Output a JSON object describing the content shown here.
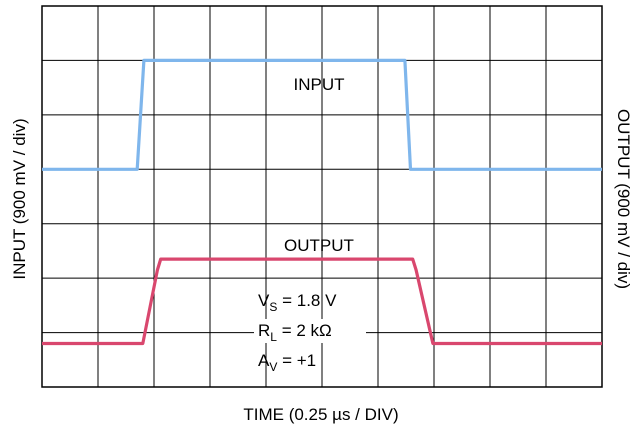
{
  "chart_data": {
    "type": "line",
    "title": "",
    "xlabel": "TIME (0.25 µs / DIV)",
    "ylabel_left": "INPUT (900 mV / div)",
    "ylabel_right": "OUTPUT (900 mV / div)",
    "grid": true,
    "xlim": [
      0,
      10
    ],
    "ylim": [
      0,
      7
    ],
    "divisions": {
      "x": 10,
      "y": 7
    },
    "series": [
      {
        "name": "INPUT",
        "color": "#7fb6ec",
        "x": [
          0,
          1.7,
          1.82,
          6.48,
          6.58,
          10
        ],
        "y": [
          4.0,
          4.0,
          6.0,
          6.0,
          4.0,
          4.0
        ]
      },
      {
        "name": "OUTPUT",
        "color": "#d9476e",
        "x": [
          0,
          1.8,
          2.06,
          2.12,
          6.62,
          6.68,
          6.98,
          10
        ],
        "y": [
          0.8,
          0.8,
          2.15,
          2.35,
          2.35,
          2.15,
          0.8,
          0.8
        ]
      }
    ],
    "annotations": [
      {
        "text": "INPUT"
      },
      {
        "text": "OUTPUT"
      },
      {
        "base": "V",
        "sub": "S",
        "rest": " = 1.8 V"
      },
      {
        "base": "R",
        "sub": "L",
        "rest": " = 2 kΩ"
      },
      {
        "base": "A",
        "sub": "V",
        "rest": " = +1"
      }
    ]
  }
}
